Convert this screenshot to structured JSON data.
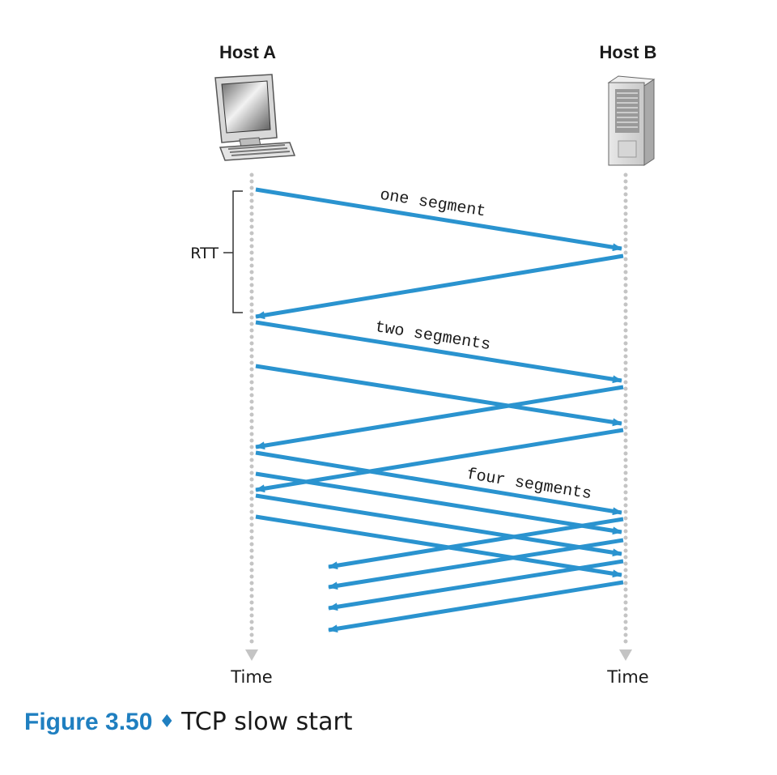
{
  "hosts": {
    "a": {
      "label": "Host A",
      "time_label": "Time"
    },
    "b": {
      "label": "Host B",
      "time_label": "Time"
    }
  },
  "rtt_label": "RTT",
  "segment_labels": {
    "one": "one segment",
    "two": "two segments",
    "four": "four segments"
  },
  "figure": {
    "number": "Figure 3.50",
    "separator": "♦",
    "title": "TCP slow start"
  },
  "colors": {
    "arrow": "#2a93cf",
    "timeline": "#c4c4c4",
    "caption_accent": "#1f7fc0"
  }
}
